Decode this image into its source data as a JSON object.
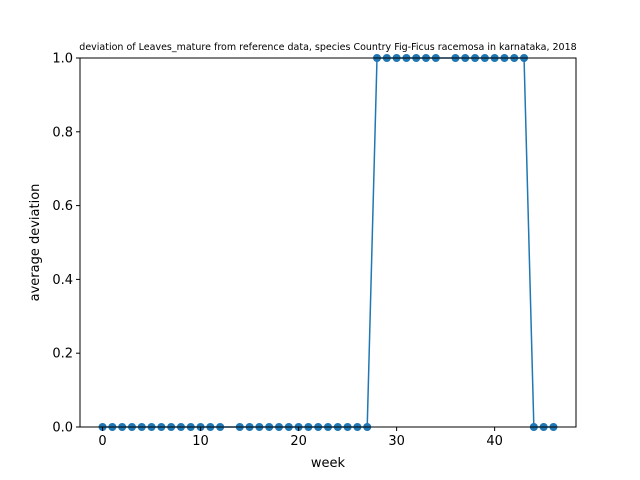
{
  "chart_data": {
    "type": "line",
    "title": "deviation of Leaves_mature from reference data, species Country Fig-Ficus racemosa in karnataka, 2018",
    "xlabel": "week",
    "ylabel": "average deviation",
    "xlim": [
      -2.3,
      48.3
    ],
    "ylim": [
      0,
      1.0
    ],
    "xticks": [
      0,
      10,
      20,
      30,
      40
    ],
    "yticks": [
      0.0,
      0.2,
      0.4,
      0.6,
      0.8,
      1.0
    ],
    "xtick_labels": [
      "0",
      "10",
      "20",
      "30",
      "40"
    ],
    "ytick_labels": [
      "0.0",
      "0.2",
      "0.4",
      "0.6",
      "0.8",
      "1.0"
    ],
    "grid": false,
    "legend": "none",
    "series": [
      {
        "color": "#1f77b4",
        "marker": "circle",
        "x": [
          0,
          1,
          2,
          3,
          4,
          5,
          6,
          7,
          8,
          9,
          10,
          11,
          12,
          14,
          15,
          16,
          17,
          18,
          19,
          20,
          21,
          22,
          23,
          24,
          25,
          26,
          27,
          28,
          29,
          30,
          31,
          32,
          33,
          34,
          36,
          37,
          38,
          39,
          40,
          41,
          42,
          43,
          44,
          45,
          46
        ],
        "y": [
          0,
          0,
          0,
          0,
          0,
          0,
          0,
          0,
          0,
          0,
          0,
          0,
          0,
          0,
          0,
          0,
          0,
          0,
          0,
          0,
          0,
          0,
          0,
          0,
          0,
          0,
          0,
          1,
          1,
          1,
          1,
          1,
          1,
          1,
          1,
          1,
          1,
          1,
          1,
          1,
          1,
          1,
          0,
          0,
          0
        ]
      }
    ]
  }
}
